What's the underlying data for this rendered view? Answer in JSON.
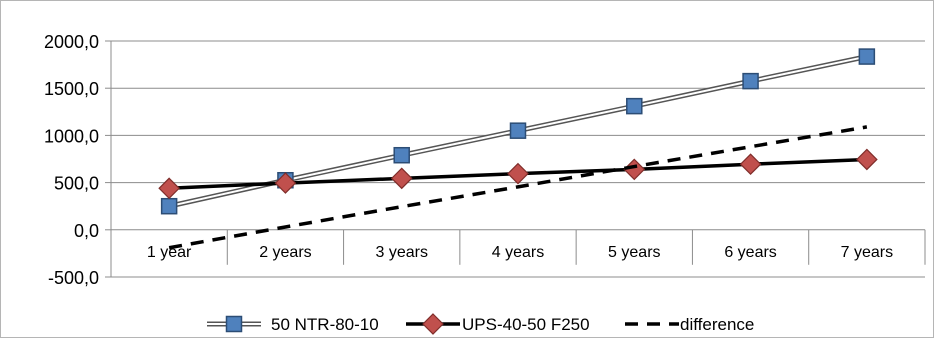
{
  "chart_data": {
    "type": "line",
    "title": "",
    "xlabel": "",
    "ylabel": "",
    "categories": [
      "1 year",
      "2 years",
      "3 years",
      "4 years",
      "5 years",
      "6 years",
      "7 years"
    ],
    "ylim": [
      -500,
      2000
    ],
    "yticks": [
      -500,
      0,
      500,
      1000,
      1500,
      2000
    ],
    "ytick_labels": [
      "-500,0",
      "0,0",
      "500,0",
      "1000,0",
      "1500,0",
      "2000,0"
    ],
    "grid": "horizontal",
    "legend_position": "bottom",
    "series": [
      {
        "name": "50 NTR-80-10",
        "values": [
          250,
          525,
          790,
          1050,
          1310,
          1575,
          1835
        ],
        "color": "#4f81bd",
        "line_style": "double",
        "marker": "square"
      },
      {
        "name": "UPS-40-50 F250",
        "values": [
          440,
          495,
          545,
          595,
          640,
          695,
          745
        ],
        "color": "#c0504d",
        "line_style": "solid",
        "marker": "diamond"
      },
      {
        "name": "difference",
        "values": [
          -190,
          30,
          245,
          455,
          670,
          880,
          1090
        ],
        "color": "#000000",
        "line_style": "dashed",
        "marker": "none"
      }
    ]
  }
}
